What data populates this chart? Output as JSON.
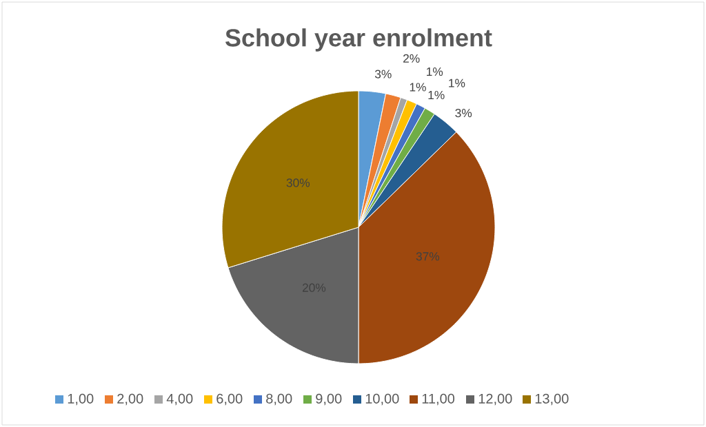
{
  "chart_data": {
    "type": "pie",
    "title": "School year enrolment",
    "categories": [
      "1,00",
      "2,00",
      "4,00",
      "6,00",
      "8,00",
      "9,00",
      "10,00",
      "11,00",
      "12,00",
      "13,00"
    ],
    "values": [
      3.2,
      1.8,
      0.8,
      1.2,
      1.1,
      1.3,
      3.3,
      37.3,
      20.2,
      29.8
    ],
    "value_labels": [
      "3%",
      "2%",
      "1%",
      "1%",
      "1%",
      "1%",
      "3%",
      "37%",
      "20%",
      "30%"
    ],
    "colors": [
      "#5b9bd5",
      "#ed7d31",
      "#a5a5a5",
      "#ffc000",
      "#4472c4",
      "#70ad47",
      "#255e91",
      "#9e480e",
      "#636363",
      "#997300"
    ],
    "legend": "bottom"
  }
}
